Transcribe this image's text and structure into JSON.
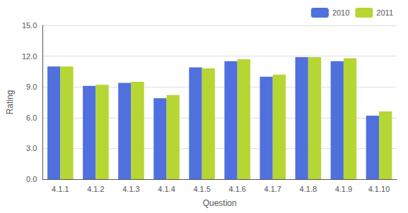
{
  "chart_data": {
    "type": "bar",
    "xlabel": "Question",
    "ylabel": "Rating",
    "categories": [
      "4.1.1",
      "4.1.2",
      "4.1.3",
      "4.1.4",
      "4.1.5",
      "4.1.6",
      "4.1.7",
      "4.1.8",
      "4.1.9",
      "4.1.10"
    ],
    "series": [
      {
        "name": "2010",
        "values": [
          11.0,
          9.1,
          9.4,
          7.9,
          10.9,
          11.5,
          10.0,
          11.9,
          11.5,
          6.2
        ]
      },
      {
        "name": "2011",
        "values": [
          11.0,
          9.2,
          9.5,
          8.2,
          10.8,
          11.7,
          10.2,
          11.9,
          11.8,
          6.6
        ]
      }
    ],
    "ylim": [
      0,
      15
    ],
    "yticks": [
      {
        "value": 0,
        "label": "0.0"
      },
      {
        "value": 3,
        "label": "3.0"
      },
      {
        "value": 6,
        "label": "6.0"
      },
      {
        "value": 9,
        "label": "9.0"
      },
      {
        "value": 12,
        "label": "12.0"
      },
      {
        "value": 15,
        "label": "15.0"
      }
    ],
    "grid": true,
    "legend": "upper right"
  }
}
